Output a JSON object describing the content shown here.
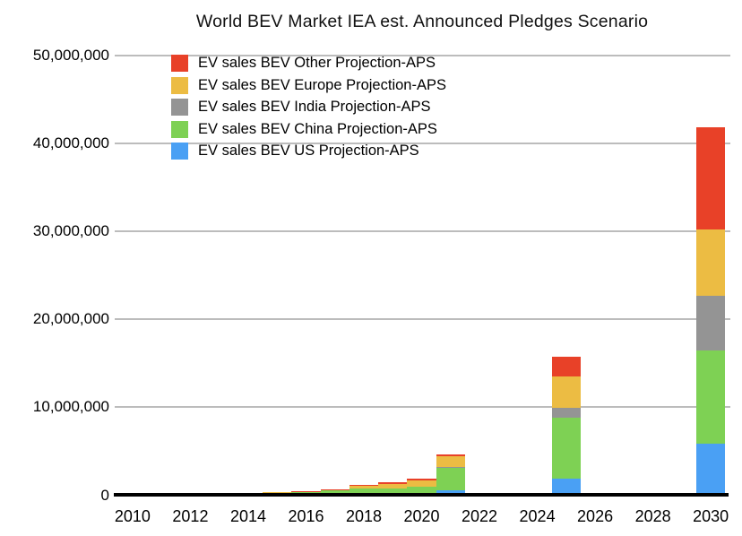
{
  "page": {
    "background": "#ffffff"
  },
  "chart_data": {
    "type": "bar",
    "stacked": true,
    "title": "World BEV Market IEA est. Announced Pledges Scenario",
    "xlabel": "",
    "ylabel": "",
    "grid": true,
    "legend_position": "top-left-inside",
    "x_axis": {
      "start_year": 2010,
      "end_year": 2030,
      "tick_step": 2,
      "tick_labels": [
        "2010",
        "2012",
        "2014",
        "2016",
        "2018",
        "2020",
        "2022",
        "2024",
        "2026",
        "2028",
        "2030"
      ]
    },
    "y_axis": {
      "min": 0,
      "max": 50000000,
      "tick_step": 10000000,
      "tick_labels": [
        "0",
        "10,000,000",
        "20,000,000",
        "30,000,000",
        "40,000,000",
        "50,000,000"
      ]
    },
    "series": [
      {
        "name": "EV sales BEV Other Projection-APS",
        "key": "other",
        "color": "#e84128"
      },
      {
        "name": "EV sales BEV Europe Projection-APS",
        "key": "europe",
        "color": "#ecbc43"
      },
      {
        "name": "EV sales BEV India Projection-APS",
        "key": "india",
        "color": "#949494"
      },
      {
        "name": "EV sales BEV China Projection-APS",
        "key": "china",
        "color": "#7ed154"
      },
      {
        "name": "EV sales BEV US Projection-APS",
        "key": "us",
        "color": "#4aa0f4"
      }
    ],
    "stack_order_bottom_to_top": [
      "us",
      "china",
      "india",
      "europe",
      "other"
    ],
    "bars": [
      {
        "year": 2014,
        "values": {
          "us": 0,
          "china": 150000,
          "india": 0,
          "europe": 50000,
          "other": 0
        }
      },
      {
        "year": 2015,
        "values": {
          "us": 50000,
          "china": 280000,
          "india": 0,
          "europe": 70000,
          "other": 0
        }
      },
      {
        "year": 2016,
        "values": {
          "us": 60000,
          "china": 320000,
          "india": 0,
          "europe": 90000,
          "other": 20000
        }
      },
      {
        "year": 2017,
        "values": {
          "us": 100000,
          "china": 420000,
          "india": 0,
          "europe": 120000,
          "other": 30000
        }
      },
      {
        "year": 2018,
        "values": {
          "us": 250000,
          "china": 500000,
          "india": 0,
          "europe": 280000,
          "other": 190000
        }
      },
      {
        "year": 2019,
        "values": {
          "us": 250000,
          "china": 520000,
          "india": 0,
          "europe": 510000,
          "other": 200000
        }
      },
      {
        "year": 2020,
        "values": {
          "us": 200000,
          "china": 800000,
          "india": 0,
          "europe": 720000,
          "other": 200000
        }
      },
      {
        "year": 2021,
        "values": {
          "us": 550000,
          "china": 2640000,
          "india": 20000,
          "europe": 1200000,
          "other": 250000
        }
      },
      {
        "year": 2025,
        "values": {
          "us": 1850000,
          "china": 6950000,
          "india": 1100000,
          "europe": 3550000,
          "other": 2250000
        }
      },
      {
        "year": 2030,
        "values": {
          "us": 5900000,
          "china": 10500000,
          "india": 6250000,
          "europe": 7550000,
          "other": 11600000
        }
      }
    ]
  },
  "colors": {
    "gridline": "#bcbcbc",
    "axis_line": "#000000",
    "text": "#000000",
    "background": "#ffffff"
  }
}
